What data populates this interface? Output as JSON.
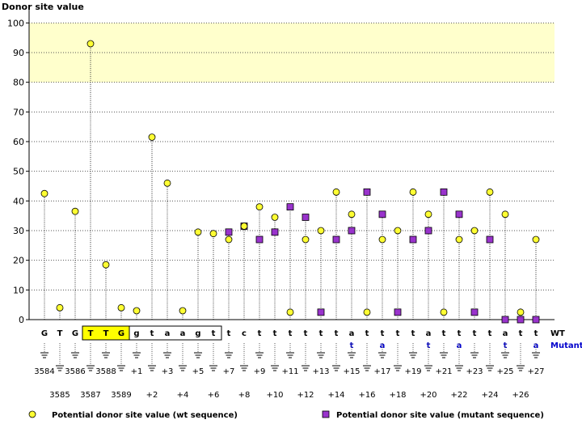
{
  "chart_data": {
    "type": "scatter",
    "title": "Donor site value",
    "ylim": [
      0,
      105
    ],
    "yticks": [
      0,
      10,
      20,
      30,
      40,
      50,
      60,
      70,
      80,
      90,
      100
    ],
    "threshold_band": [
      80,
      100
    ],
    "wt_label": "WT",
    "mut_label": "Mutant",
    "positions": [
      {
        "wt": "G",
        "mut": "",
        "label": "3584",
        "wt_value": 42.5,
        "mut_value": null,
        "exon": false
      },
      {
        "wt": "T",
        "mut": "",
        "label": "3585",
        "wt_value": 4.0,
        "mut_value": null,
        "exon": false
      },
      {
        "wt": "G",
        "mut": "",
        "label": "3586",
        "wt_value": 36.5,
        "mut_value": null,
        "exon": false
      },
      {
        "wt": "T",
        "mut": "",
        "label": "3587",
        "wt_value": 93.0,
        "mut_value": null,
        "exon": true
      },
      {
        "wt": "T",
        "mut": "",
        "label": "3588",
        "wt_value": 18.5,
        "mut_value": null,
        "exon": true
      },
      {
        "wt": "G",
        "mut": "",
        "label": "3589",
        "wt_value": 4.0,
        "mut_value": null,
        "exon": true
      },
      {
        "wt": "g",
        "mut": "",
        "label": "+1",
        "wt_value": 3.0,
        "mut_value": null,
        "exon": false
      },
      {
        "wt": "t",
        "mut": "",
        "label": "+2",
        "wt_value": 61.5,
        "mut_value": null,
        "exon": false
      },
      {
        "wt": "a",
        "mut": "",
        "label": "+3",
        "wt_value": 46.0,
        "mut_value": null,
        "exon": false
      },
      {
        "wt": "a",
        "mut": "",
        "label": "+4",
        "wt_value": 3.0,
        "mut_value": null,
        "exon": false
      },
      {
        "wt": "g",
        "mut": "",
        "label": "+5",
        "wt_value": 29.5,
        "mut_value": null,
        "exon": false
      },
      {
        "wt": "t",
        "mut": "",
        "label": "+6",
        "wt_value": 29.0,
        "mut_value": null,
        "exon": false
      },
      {
        "wt": "t",
        "mut": "",
        "label": "+7",
        "wt_value": 27.0,
        "mut_value": 29.5,
        "exon": false
      },
      {
        "wt": "c",
        "mut": "",
        "label": "+8",
        "wt_value": 31.5,
        "mut_value": 31.5,
        "exon": false
      },
      {
        "wt": "t",
        "mut": "",
        "label": "+9",
        "wt_value": 38.0,
        "mut_value": 27.0,
        "exon": false
      },
      {
        "wt": "t",
        "mut": "",
        "label": "+10",
        "wt_value": 34.5,
        "mut_value": 29.5,
        "exon": false
      },
      {
        "wt": "t",
        "mut": "",
        "label": "+11",
        "wt_value": 2.5,
        "mut_value": 38.0,
        "exon": false
      },
      {
        "wt": "t",
        "mut": "",
        "label": "+12",
        "wt_value": 27.0,
        "mut_value": 34.5,
        "exon": false
      },
      {
        "wt": "t",
        "mut": "",
        "label": "+13",
        "wt_value": 30.0,
        "mut_value": 2.5,
        "exon": false
      },
      {
        "wt": "t",
        "mut": "",
        "label": "+14",
        "wt_value": 43.0,
        "mut_value": 27.0,
        "exon": false
      },
      {
        "wt": "a",
        "mut": "t",
        "label": "+15",
        "wt_value": 35.5,
        "mut_value": 30.0,
        "exon": false
      },
      {
        "wt": "t",
        "mut": "",
        "label": "+16",
        "wt_value": 2.5,
        "mut_value": 43.0,
        "exon": false
      },
      {
        "wt": "t",
        "mut": "a",
        "label": "+17",
        "wt_value": 27.0,
        "mut_value": 35.5,
        "exon": false
      },
      {
        "wt": "t",
        "mut": "",
        "label": "+18",
        "wt_value": 30.0,
        "mut_value": 2.5,
        "exon": false
      },
      {
        "wt": "t",
        "mut": "",
        "label": "+19",
        "wt_value": 43.0,
        "mut_value": 27.0,
        "exon": false
      },
      {
        "wt": "a",
        "mut": "t",
        "label": "+20",
        "wt_value": 35.5,
        "mut_value": 30.0,
        "exon": false
      },
      {
        "wt": "t",
        "mut": "",
        "label": "+21",
        "wt_value": 2.5,
        "mut_value": 43.0,
        "exon": false
      },
      {
        "wt": "t",
        "mut": "a",
        "label": "+22",
        "wt_value": 27.0,
        "mut_value": 35.5,
        "exon": false
      },
      {
        "wt": "t",
        "mut": "",
        "label": "+23",
        "wt_value": 30.0,
        "mut_value": 2.5,
        "exon": false
      },
      {
        "wt": "t",
        "mut": "",
        "label": "+24",
        "wt_value": 43.0,
        "mut_value": 27.0,
        "exon": false
      },
      {
        "wt": "a",
        "mut": "t",
        "label": "+25",
        "wt_value": 35.5,
        "mut_value": 0.0,
        "exon": false
      },
      {
        "wt": "t",
        "mut": "",
        "label": "+26",
        "wt_value": 2.5,
        "mut_value": 0.0,
        "exon": false
      },
      {
        "wt": "t",
        "mut": "a",
        "label": "+27",
        "wt_value": 27.0,
        "mut_value": 0.0,
        "exon": false
      }
    ],
    "legend": [
      {
        "name": "Potential donor site value (wt sequence)",
        "marker": "circle"
      },
      {
        "name": "Potential donor site value (mutant sequence)",
        "marker": "square"
      }
    ],
    "colors": {
      "wt_fill": "#ffff33",
      "mut_fill": "#9933cc",
      "band": "#ffffcc",
      "exon_box": "#ffff00",
      "mutant_text": "#0000cc",
      "grid": "#555555"
    }
  }
}
